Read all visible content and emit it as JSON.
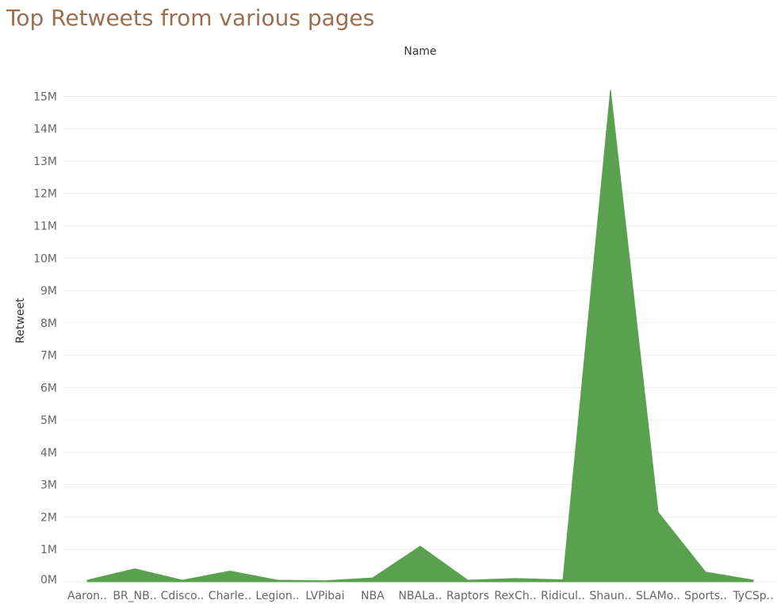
{
  "chart_data": {
    "type": "area",
    "title": "Top Retweets from various pages",
    "column_header": "Name",
    "xlabel": "",
    "ylabel": "Retweet",
    "categories": [
      "Aaron..",
      "BR_NB..",
      "Cdisco..",
      "Charle..",
      "Legion..",
      "LVPibai",
      "NBA",
      "NBALa..",
      "Raptors",
      "RexCh..",
      "Ridicul..",
      "Shaun..",
      "SLAMo..",
      "Sports..",
      "TyCSp.."
    ],
    "series": [
      {
        "values": [
          0.05,
          0.4,
          0.05,
          0.33,
          0.05,
          0.03,
          0.12,
          1.1,
          0.05,
          0.1,
          0.06,
          15.2,
          2.15,
          0.3,
          0.05
        ]
      }
    ],
    "y_ticks": [
      "0M",
      "1M",
      "2M",
      "3M",
      "4M",
      "5M",
      "6M",
      "7M",
      "8M",
      "9M",
      "10M",
      "11M",
      "12M",
      "13M",
      "14M",
      "15M"
    ],
    "ylim": [
      0,
      15.5
    ],
    "unit": "M",
    "grid": true,
    "legend": "none",
    "colors": {
      "area": "#59a14f",
      "title": "#9a6f50"
    }
  }
}
